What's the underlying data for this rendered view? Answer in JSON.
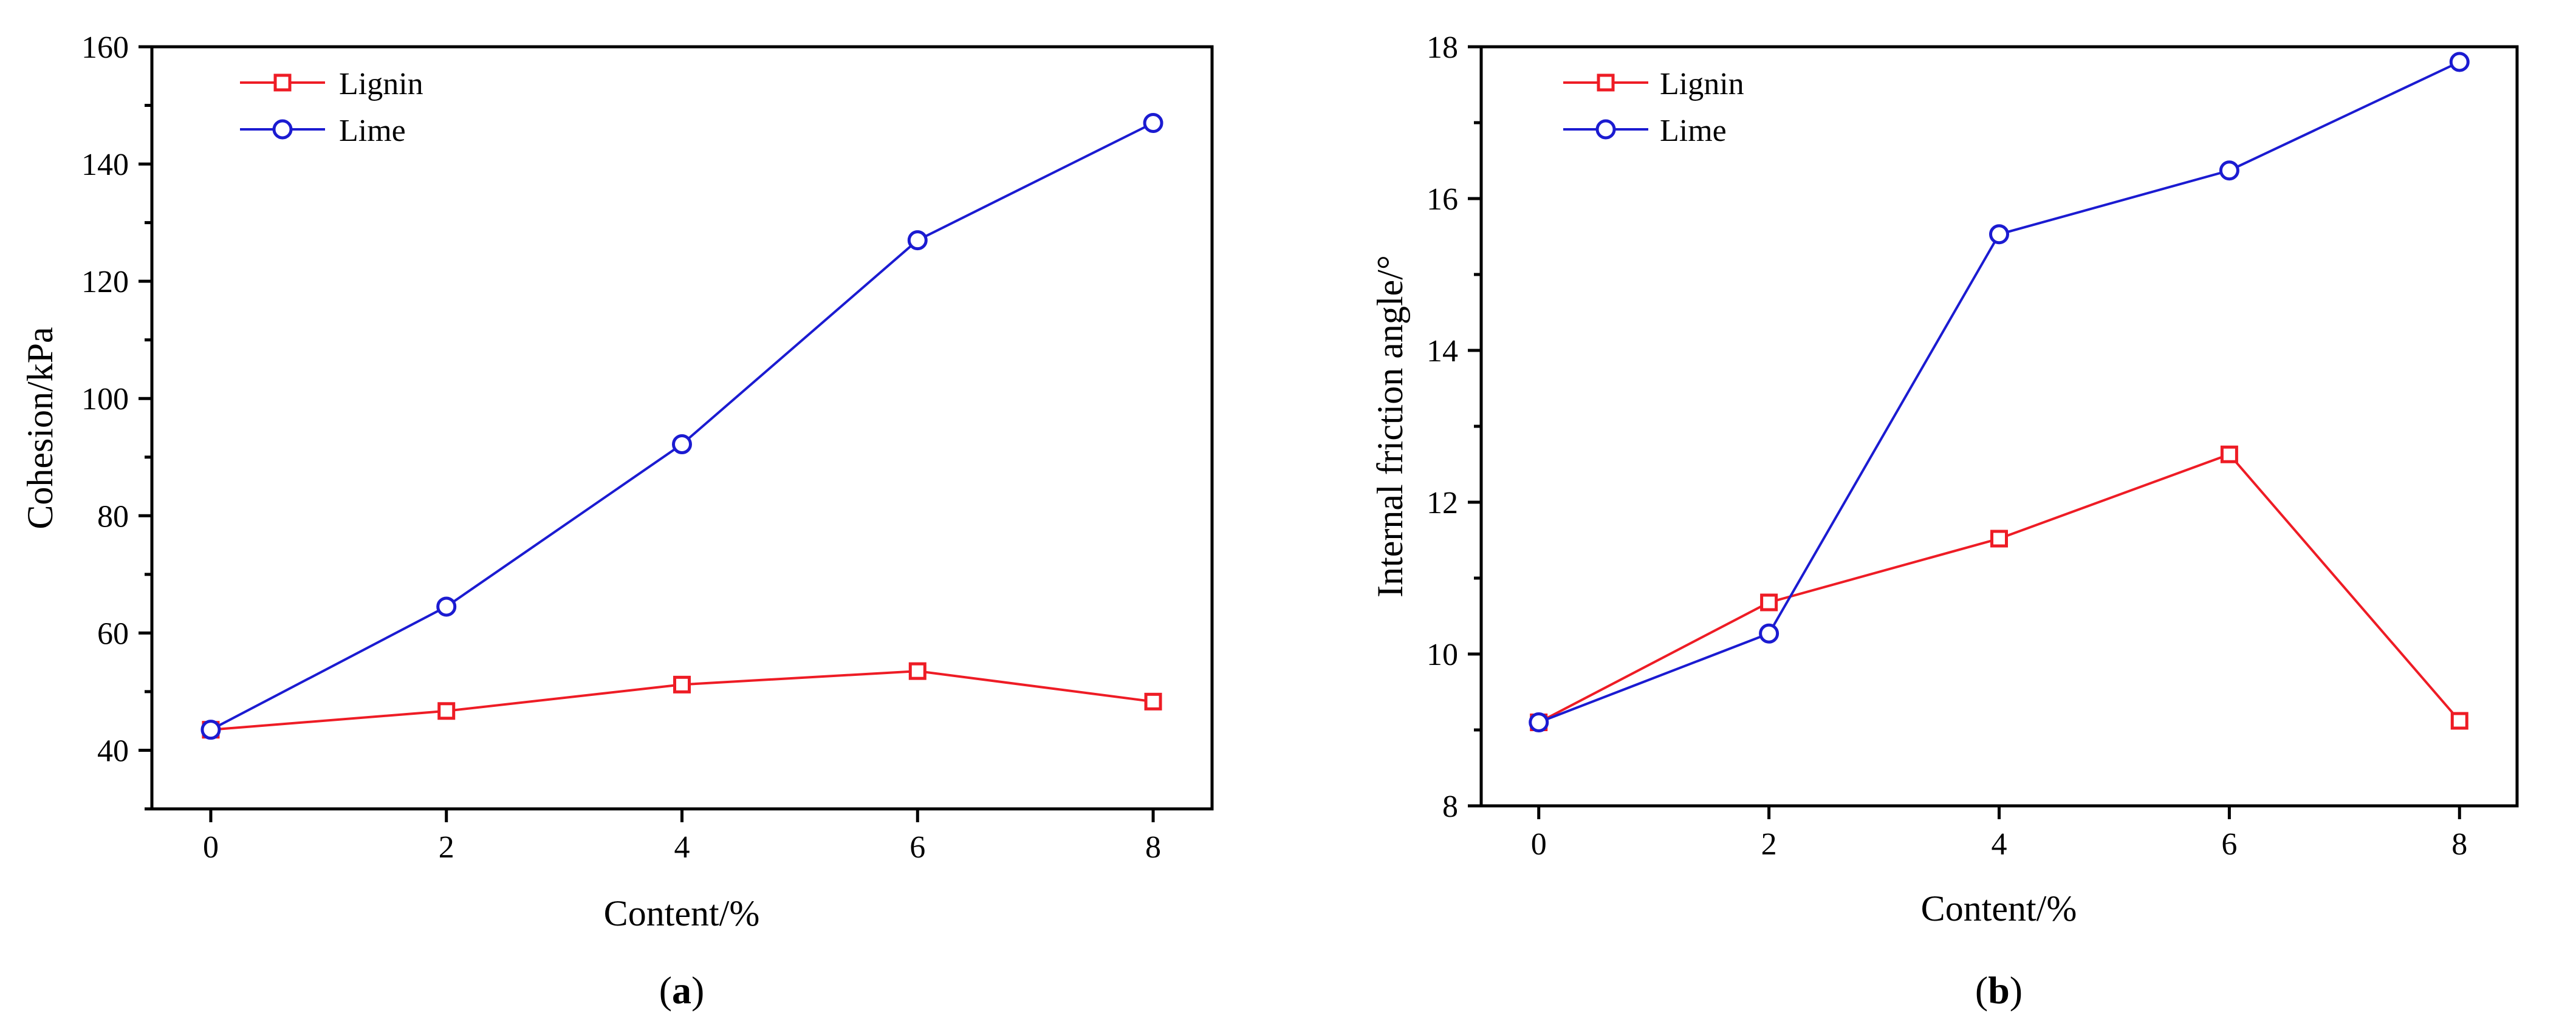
{
  "colors": {
    "lignin": "#ee1c25",
    "lime": "#1b1bd1",
    "axis": "#000000"
  },
  "chart_data": [
    {
      "type": "line",
      "panel": "a",
      "caption_label": "a",
      "caption_open": "(",
      "caption_close": ")",
      "xlabel": "Content/%",
      "ylabel": "Cohesion/kPa",
      "x": [
        0,
        2,
        4,
        6,
        8
      ],
      "xlim": [
        -0.5,
        8.5
      ],
      "xticks": [
        0,
        2,
        4,
        6,
        8
      ],
      "ylim": [
        30,
        160
      ],
      "yticks": [
        40,
        60,
        80,
        100,
        120,
        140,
        160
      ],
      "yminor": [
        30,
        50,
        70,
        90,
        110,
        130,
        150
      ],
      "legend_position": "top-left",
      "series": [
        {
          "name": "Lignin",
          "marker": "square",
          "color": "#ee1c25",
          "values": [
            43.5,
            46.7,
            51.2,
            53.5,
            48.3
          ]
        },
        {
          "name": "Lime",
          "marker": "circle",
          "color": "#1b1bd1",
          "values": [
            43.5,
            64.5,
            92.2,
            127.0,
            147.0
          ]
        }
      ]
    },
    {
      "type": "line",
      "panel": "b",
      "caption_label": "b",
      "caption_open": "(",
      "caption_close": ")",
      "xlabel": "Content/%",
      "ylabel": "Internal friction angle/°",
      "x": [
        0,
        2,
        4,
        6,
        8
      ],
      "xlim": [
        -0.5,
        8.5
      ],
      "xticks": [
        0,
        2,
        4,
        6,
        8
      ],
      "ylim": [
        8,
        18
      ],
      "yticks": [
        8,
        10,
        12,
        14,
        16,
        18
      ],
      "yminor": [
        9,
        11,
        13,
        15,
        17
      ],
      "legend_position": "top-left",
      "series": [
        {
          "name": "Lignin",
          "marker": "square",
          "color": "#ee1c25",
          "values": [
            9.1,
            10.68,
            11.52,
            12.63,
            9.12
          ]
        },
        {
          "name": "Lime",
          "marker": "circle",
          "color": "#1b1bd1",
          "values": [
            9.1,
            10.27,
            15.53,
            16.37,
            17.8
          ]
        }
      ]
    }
  ]
}
